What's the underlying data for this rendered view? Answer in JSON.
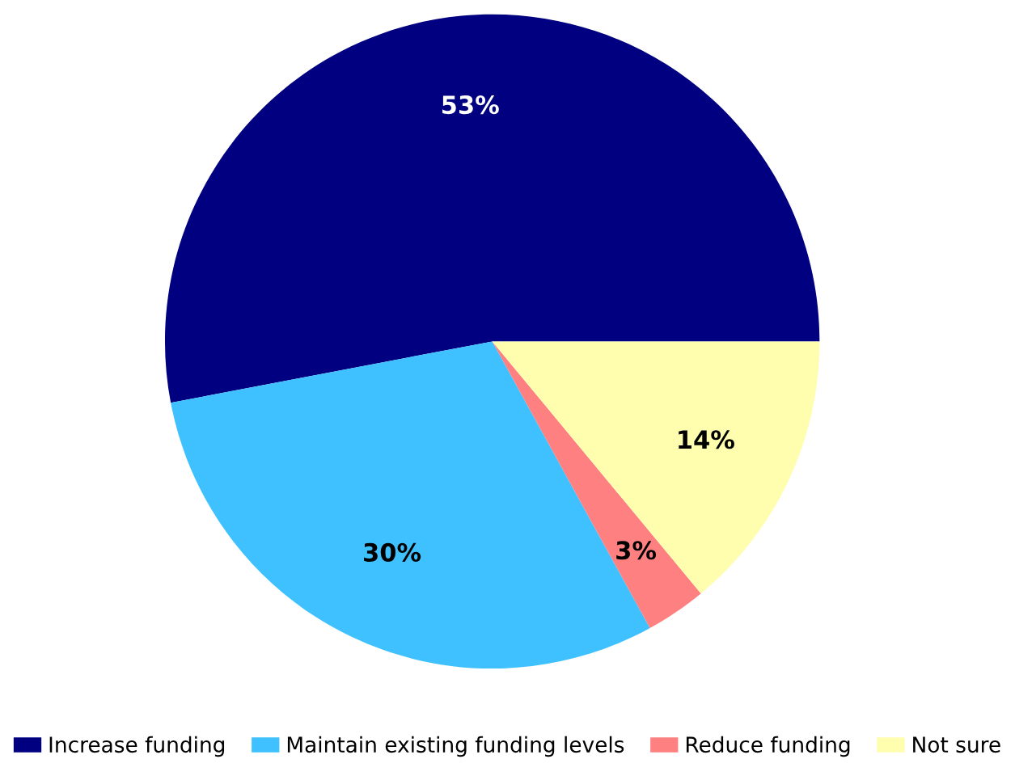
{
  "chart_data": {
    "type": "pie",
    "categories": [
      "Increase funding",
      "Maintain existing funding levels",
      "Reduce funding",
      "Not sure"
    ],
    "values": [
      53,
      30,
      3,
      14
    ],
    "value_labels": [
      "53%",
      "30%",
      "3%",
      "14%"
    ],
    "colors": [
      "#000080",
      "#3ec1fe",
      "#fe8080",
      "#fefeae"
    ],
    "legend": "bottom"
  }
}
